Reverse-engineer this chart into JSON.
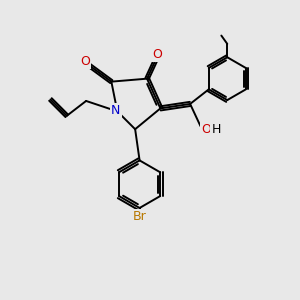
{
  "background_color": "#e8e8e8",
  "figsize": [
    3.0,
    3.0
  ],
  "dpi": 100,
  "bond_color": "#000000",
  "N_color": "#0000cc",
  "O_color": "#cc0000",
  "Br_color": "#b87800",
  "OH_color": "#008080",
  "bond_width": 1.4,
  "xlim": [
    0,
    10
  ],
  "ylim": [
    0,
    10
  ]
}
